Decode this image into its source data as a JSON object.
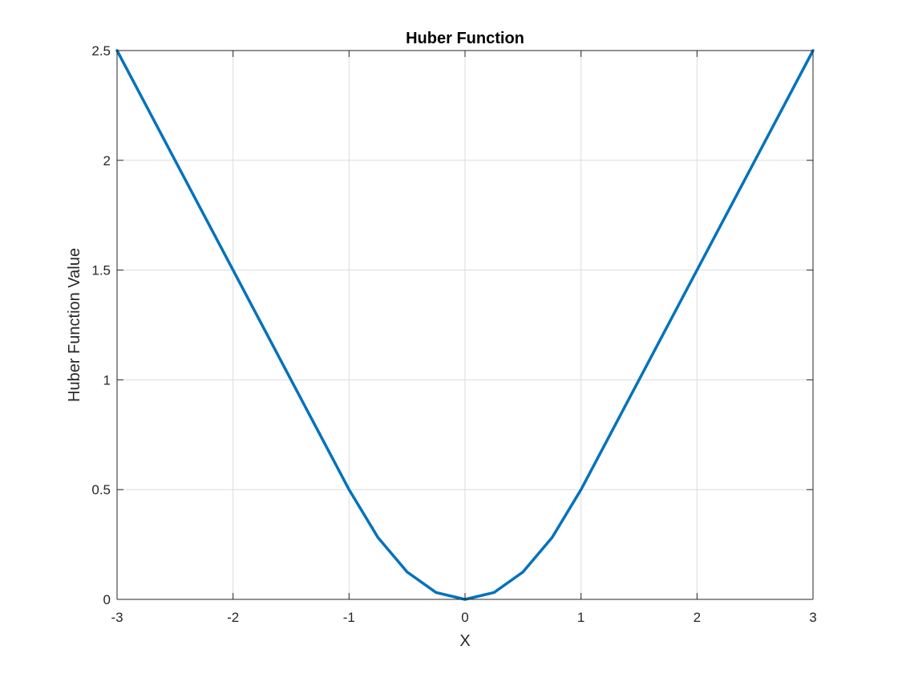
{
  "chart_data": {
    "type": "line",
    "title": "Huber Function",
    "xlabel": "X",
    "ylabel": "Huber Function Value",
    "xlim": [
      -3,
      3
    ],
    "ylim": [
      0,
      2.5
    ],
    "xticks": [
      -3,
      -2,
      -1,
      0,
      1,
      2,
      3
    ],
    "xtick_labels": [
      "-3",
      "-2",
      "-1",
      "0",
      "1",
      "2",
      "3"
    ],
    "yticks": [
      0,
      0.5,
      1,
      1.5,
      2,
      2.5
    ],
    "ytick_labels": [
      "0",
      "0.5",
      "1",
      "1.5",
      "2",
      "2.5"
    ],
    "grid": true,
    "box": true,
    "series": [
      {
        "color": "#0072BD",
        "x": [
          -3,
          -2.5,
          -2,
          -1.5,
          -1,
          -0.75,
          -0.5,
          -0.25,
          0,
          0.25,
          0.5,
          0.75,
          1,
          1.5,
          2,
          2.5,
          3
        ],
        "y": [
          2.5,
          2.0,
          1.5,
          1.0,
          0.5,
          0.28125,
          0.125,
          0.03125,
          0,
          0.03125,
          0.125,
          0.28125,
          0.5,
          1.0,
          1.5,
          2.0,
          2.5
        ]
      }
    ]
  },
  "style": {
    "background": "#ffffff",
    "axis_color": "#262626",
    "grid_color": "#dcdcdc"
  }
}
